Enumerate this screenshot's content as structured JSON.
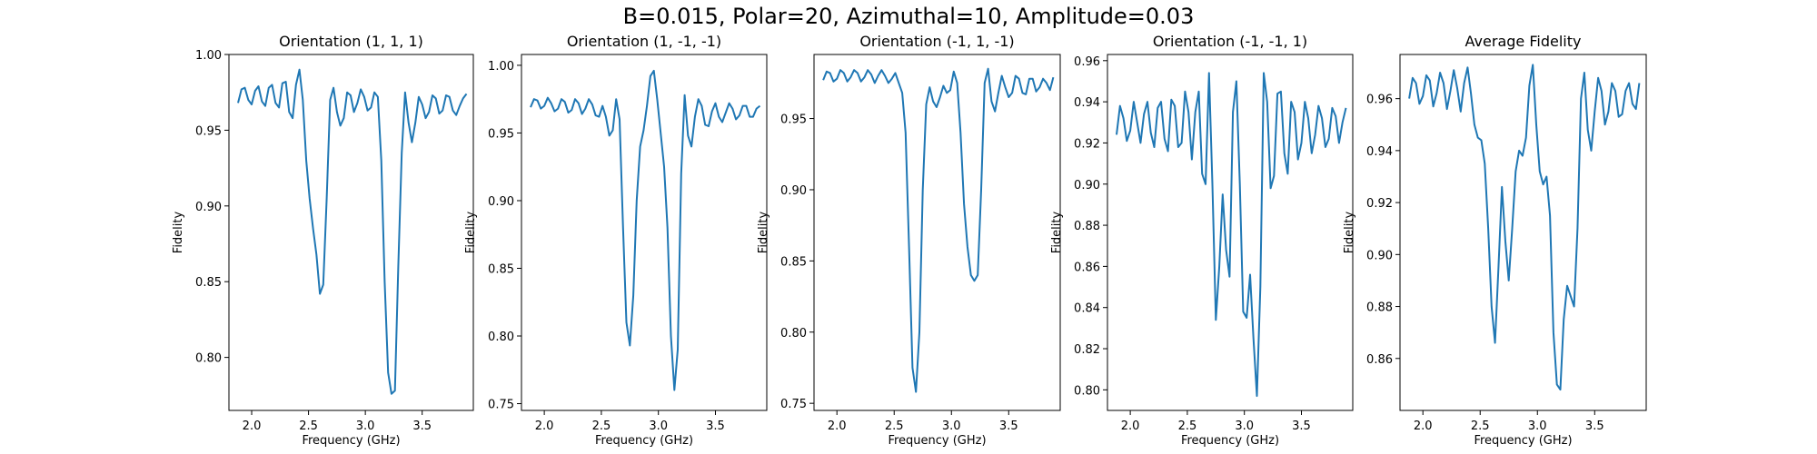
{
  "suptitle": "B=0.015, Polar=20, Azimuthal=10, Amplitude=0.03",
  "chart_data": [
    {
      "type": "line",
      "title": "Orientation (1, 1, 1)",
      "xlabel": "Frequency (GHz)",
      "ylabel": "Fidelity",
      "xlim": [
        1.8,
        3.95
      ],
      "ylim": [
        0.765,
        1.0
      ],
      "xticks": [
        "2.0",
        "2.5",
        "3.0",
        "3.5"
      ],
      "yticks": [
        "0.80",
        "0.85",
        "0.90",
        "0.95",
        "1.00"
      ],
      "series": [
        {
          "color": "#1f77b4",
          "x": [
            1.88,
            1.91,
            1.94,
            1.97,
            2.0,
            2.03,
            2.06,
            2.09,
            2.12,
            2.15,
            2.18,
            2.21,
            2.24,
            2.27,
            2.3,
            2.33,
            2.36,
            2.39,
            2.42,
            2.45,
            2.48,
            2.51,
            2.54,
            2.57,
            2.6,
            2.63,
            2.66,
            2.69,
            2.72,
            2.75,
            2.78,
            2.81,
            2.84,
            2.87,
            2.9,
            2.93,
            2.96,
            2.99,
            3.02,
            3.05,
            3.08,
            3.11,
            3.14,
            3.17,
            3.2,
            3.23,
            3.26,
            3.29,
            3.32,
            3.35,
            3.38,
            3.41,
            3.44,
            3.47,
            3.5,
            3.53,
            3.56,
            3.59,
            3.62,
            3.65,
            3.68,
            3.71,
            3.74,
            3.77,
            3.8,
            3.83,
            3.86,
            3.89
          ],
          "y": [
            0.968,
            0.977,
            0.978,
            0.97,
            0.967,
            0.976,
            0.979,
            0.969,
            0.966,
            0.978,
            0.98,
            0.968,
            0.965,
            0.981,
            0.982,
            0.962,
            0.958,
            0.98,
            0.99,
            0.97,
            0.93,
            0.905,
            0.885,
            0.868,
            0.842,
            0.848,
            0.905,
            0.97,
            0.978,
            0.962,
            0.953,
            0.958,
            0.975,
            0.973,
            0.962,
            0.968,
            0.977,
            0.972,
            0.963,
            0.965,
            0.975,
            0.972,
            0.93,
            0.85,
            0.79,
            0.776,
            0.778,
            0.86,
            0.935,
            0.975,
            0.955,
            0.942,
            0.955,
            0.972,
            0.967,
            0.958,
            0.962,
            0.973,
            0.971,
            0.961,
            0.963,
            0.973,
            0.972,
            0.963,
            0.96,
            0.966,
            0.971,
            0.974
          ]
        }
      ]
    },
    {
      "type": "line",
      "title": "Orientation (1, -1, -1)",
      "xlabel": "Frequency (GHz)",
      "ylabel": "Fidelity",
      "xlim": [
        1.8,
        3.95
      ],
      "ylim": [
        0.745,
        1.008
      ],
      "xticks": [
        "2.0",
        "2.5",
        "3.0",
        "3.5"
      ],
      "yticks": [
        "0.75",
        "0.80",
        "0.85",
        "0.90",
        "0.95",
        "1.00"
      ],
      "series": [
        {
          "color": "#1f77b4",
          "x": [
            1.88,
            1.91,
            1.94,
            1.97,
            2.0,
            2.03,
            2.06,
            2.09,
            2.12,
            2.15,
            2.18,
            2.21,
            2.24,
            2.27,
            2.3,
            2.33,
            2.36,
            2.39,
            2.42,
            2.45,
            2.48,
            2.51,
            2.54,
            2.57,
            2.6,
            2.63,
            2.66,
            2.69,
            2.72,
            2.75,
            2.78,
            2.81,
            2.84,
            2.87,
            2.9,
            2.93,
            2.96,
            2.99,
            3.02,
            3.05,
            3.08,
            3.11,
            3.14,
            3.17,
            3.2,
            3.23,
            3.26,
            3.29,
            3.32,
            3.35,
            3.38,
            3.41,
            3.44,
            3.47,
            3.5,
            3.53,
            3.56,
            3.59,
            3.62,
            3.65,
            3.68,
            3.71,
            3.74,
            3.77,
            3.8,
            3.83,
            3.86,
            3.89
          ],
          "y": [
            0.969,
            0.975,
            0.974,
            0.968,
            0.97,
            0.976,
            0.972,
            0.966,
            0.968,
            0.975,
            0.973,
            0.965,
            0.967,
            0.975,
            0.972,
            0.964,
            0.968,
            0.975,
            0.971,
            0.963,
            0.962,
            0.97,
            0.962,
            0.948,
            0.952,
            0.975,
            0.96,
            0.88,
            0.81,
            0.793,
            0.83,
            0.9,
            0.94,
            0.952,
            0.97,
            0.992,
            0.996,
            0.975,
            0.95,
            0.925,
            0.88,
            0.8,
            0.76,
            0.79,
            0.92,
            0.978,
            0.948,
            0.94,
            0.962,
            0.975,
            0.97,
            0.956,
            0.955,
            0.966,
            0.972,
            0.962,
            0.958,
            0.965,
            0.972,
            0.968,
            0.96,
            0.963,
            0.97,
            0.97,
            0.962,
            0.962,
            0.968,
            0.97
          ]
        }
      ]
    },
    {
      "type": "line",
      "title": "Orientation (-1, 1, -1)",
      "xlabel": "Frequency (GHz)",
      "ylabel": "Fidelity",
      "xlim": [
        1.8,
        3.95
      ],
      "ylim": [
        0.745,
        0.995
      ],
      "xticks": [
        "2.0",
        "2.5",
        "3.0",
        "3.5"
      ],
      "yticks": [
        "0.75",
        "0.80",
        "0.85",
        "0.90",
        "0.95"
      ],
      "series": [
        {
          "color": "#1f77b4",
          "x": [
            1.88,
            1.91,
            1.94,
            1.97,
            2.0,
            2.03,
            2.06,
            2.09,
            2.12,
            2.15,
            2.18,
            2.21,
            2.24,
            2.27,
            2.3,
            2.33,
            2.36,
            2.39,
            2.42,
            2.45,
            2.48,
            2.51,
            2.54,
            2.57,
            2.6,
            2.63,
            2.66,
            2.69,
            2.72,
            2.75,
            2.78,
            2.81,
            2.84,
            2.87,
            2.9,
            2.93,
            2.96,
            2.99,
            3.02,
            3.05,
            3.08,
            3.11,
            3.14,
            3.17,
            3.2,
            3.23,
            3.26,
            3.29,
            3.32,
            3.35,
            3.38,
            3.41,
            3.44,
            3.47,
            3.5,
            3.53,
            3.56,
            3.59,
            3.62,
            3.65,
            3.68,
            3.71,
            3.74,
            3.77,
            3.8,
            3.83,
            3.86,
            3.89
          ],
          "y": [
            0.977,
            0.983,
            0.982,
            0.976,
            0.978,
            0.984,
            0.982,
            0.976,
            0.979,
            0.984,
            0.982,
            0.976,
            0.979,
            0.984,
            0.981,
            0.975,
            0.98,
            0.984,
            0.98,
            0.975,
            0.978,
            0.982,
            0.975,
            0.968,
            0.94,
            0.86,
            0.775,
            0.758,
            0.8,
            0.9,
            0.96,
            0.972,
            0.962,
            0.958,
            0.965,
            0.973,
            0.968,
            0.97,
            0.983,
            0.975,
            0.94,
            0.89,
            0.86,
            0.84,
            0.836,
            0.84,
            0.9,
            0.975,
            0.985,
            0.962,
            0.955,
            0.968,
            0.98,
            0.972,
            0.965,
            0.968,
            0.98,
            0.978,
            0.968,
            0.967,
            0.978,
            0.978,
            0.969,
            0.972,
            0.978,
            0.975,
            0.97,
            0.979
          ]
        }
      ]
    },
    {
      "type": "line",
      "title": "Orientation (-1, -1, 1)",
      "xlabel": "Frequency (GHz)",
      "ylabel": "Fidelity",
      "xlim": [
        1.8,
        3.95
      ],
      "ylim": [
        0.79,
        0.963
      ],
      "xticks": [
        "2.0",
        "2.5",
        "3.0",
        "3.5"
      ],
      "yticks": [
        "0.80",
        "0.82",
        "0.84",
        "0.86",
        "0.88",
        "0.90",
        "0.92",
        "0.94",
        "0.96"
      ],
      "series": [
        {
          "color": "#1f77b4",
          "x": [
            1.88,
            1.91,
            1.94,
            1.97,
            2.0,
            2.03,
            2.06,
            2.09,
            2.12,
            2.15,
            2.18,
            2.21,
            2.24,
            2.27,
            2.3,
            2.33,
            2.36,
            2.39,
            2.42,
            2.45,
            2.48,
            2.51,
            2.54,
            2.57,
            2.6,
            2.63,
            2.66,
            2.69,
            2.72,
            2.75,
            2.78,
            2.81,
            2.84,
            2.87,
            2.9,
            2.93,
            2.96,
            2.99,
            3.02,
            3.05,
            3.08,
            3.11,
            3.14,
            3.17,
            3.2,
            3.23,
            3.26,
            3.29,
            3.32,
            3.35,
            3.38,
            3.41,
            3.44,
            3.47,
            3.5,
            3.53,
            3.56,
            3.59,
            3.62,
            3.65,
            3.68,
            3.71,
            3.74,
            3.77,
            3.8,
            3.83,
            3.86,
            3.89
          ],
          "y": [
            0.924,
            0.938,
            0.932,
            0.921,
            0.926,
            0.94,
            0.93,
            0.92,
            0.934,
            0.94,
            0.925,
            0.918,
            0.937,
            0.94,
            0.922,
            0.916,
            0.941,
            0.938,
            0.918,
            0.92,
            0.945,
            0.935,
            0.912,
            0.935,
            0.945,
            0.905,
            0.9,
            0.954,
            0.9,
            0.834,
            0.86,
            0.895,
            0.868,
            0.855,
            0.935,
            0.95,
            0.9,
            0.838,
            0.835,
            0.856,
            0.825,
            0.797,
            0.85,
            0.954,
            0.94,
            0.898,
            0.904,
            0.944,
            0.945,
            0.915,
            0.905,
            0.94,
            0.935,
            0.912,
            0.92,
            0.94,
            0.932,
            0.915,
            0.924,
            0.938,
            0.932,
            0.918,
            0.922,
            0.937,
            0.933,
            0.92,
            0.93,
            0.937
          ]
        }
      ]
    },
    {
      "type": "line",
      "title": "Average Fidelity",
      "xlabel": "Frequency (GHz)",
      "ylabel": "Fidelity",
      "xlim": [
        1.8,
        3.95
      ],
      "ylim": [
        0.84,
        0.977
      ],
      "xticks": [
        "2.0",
        "2.5",
        "3.0",
        "3.5"
      ],
      "yticks": [
        "0.86",
        "0.88",
        "0.90",
        "0.92",
        "0.94",
        "0.96"
      ],
      "series": [
        {
          "color": "#1f77b4",
          "x": [
            1.88,
            1.91,
            1.94,
            1.97,
            2.0,
            2.03,
            2.06,
            2.09,
            2.12,
            2.15,
            2.18,
            2.21,
            2.24,
            2.27,
            2.3,
            2.33,
            2.36,
            2.39,
            2.42,
            2.45,
            2.48,
            2.51,
            2.54,
            2.57,
            2.6,
            2.63,
            2.66,
            2.69,
            2.72,
            2.75,
            2.78,
            2.81,
            2.84,
            2.87,
            2.9,
            2.93,
            2.96,
            2.99,
            3.02,
            3.05,
            3.08,
            3.11,
            3.14,
            3.17,
            3.2,
            3.23,
            3.26,
            3.29,
            3.32,
            3.35,
            3.38,
            3.41,
            3.44,
            3.47,
            3.5,
            3.53,
            3.56,
            3.59,
            3.62,
            3.65,
            3.68,
            3.71,
            3.74,
            3.77,
            3.8,
            3.83,
            3.86,
            3.89
          ],
          "y": [
            0.96,
            0.968,
            0.966,
            0.958,
            0.961,
            0.969,
            0.967,
            0.957,
            0.962,
            0.97,
            0.966,
            0.956,
            0.963,
            0.971,
            0.964,
            0.955,
            0.966,
            0.972,
            0.962,
            0.95,
            0.945,
            0.944,
            0.935,
            0.91,
            0.88,
            0.866,
            0.895,
            0.926,
            0.905,
            0.89,
            0.91,
            0.932,
            0.94,
            0.938,
            0.945,
            0.965,
            0.973,
            0.95,
            0.932,
            0.927,
            0.93,
            0.915,
            0.87,
            0.85,
            0.848,
            0.875,
            0.888,
            0.884,
            0.88,
            0.91,
            0.96,
            0.97,
            0.948,
            0.94,
            0.955,
            0.968,
            0.963,
            0.95,
            0.955,
            0.966,
            0.963,
            0.953,
            0.954,
            0.963,
            0.966,
            0.958,
            0.956,
            0.966
          ]
        }
      ]
    }
  ]
}
